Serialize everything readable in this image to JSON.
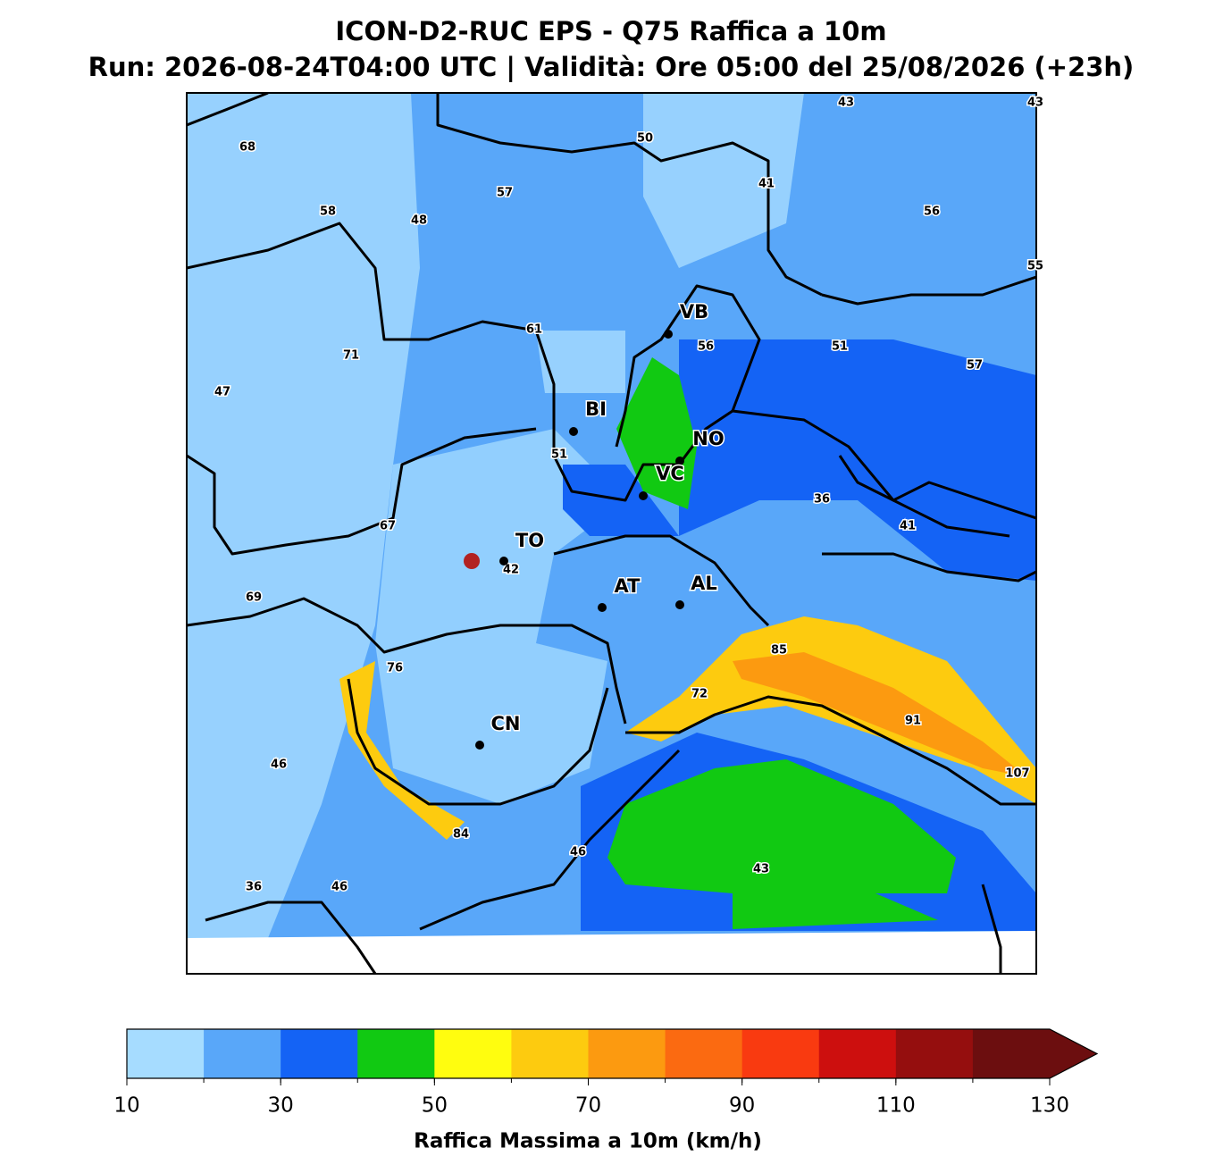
{
  "title": "ICON-D2-RUC EPS - Q75 Raffica a 10m",
  "subtitle": "Run: 2026-08-24T04:00 UTC | Validità: Ore 05:00 del 25/08/2026 (+23h)",
  "map": {
    "cities": [
      "VB",
      "BI",
      "NO",
      "VC",
      "TO",
      "AT",
      "AL",
      "CN"
    ],
    "value_labels": [
      68,
      50,
      43,
      43,
      57,
      41,
      58,
      48,
      56,
      55,
      61,
      56,
      51,
      71,
      57,
      47,
      51,
      36,
      41,
      67,
      42,
      69,
      85,
      76,
      72,
      91,
      107,
      46,
      84,
      46,
      43,
      36,
      46
    ]
  },
  "colorbar": {
    "levels": [
      10,
      20,
      30,
      40,
      50,
      60,
      70,
      80,
      90,
      100,
      110,
      120,
      130
    ],
    "colors": [
      "#a6dcff",
      "#59a7f9",
      "#1463f5",
      "#11c912",
      "#fffd0f",
      "#fdcb0f",
      "#fc9a10",
      "#fb6a11",
      "#f93a10",
      "#cd0f0e",
      "#950e0e",
      "#6c0e0f"
    ],
    "extend_color": "#6c0e0f",
    "ticks": [
      10,
      30,
      50,
      70,
      90,
      110,
      130
    ],
    "label": "Raffica Massima a 10m (km/h)"
  }
}
